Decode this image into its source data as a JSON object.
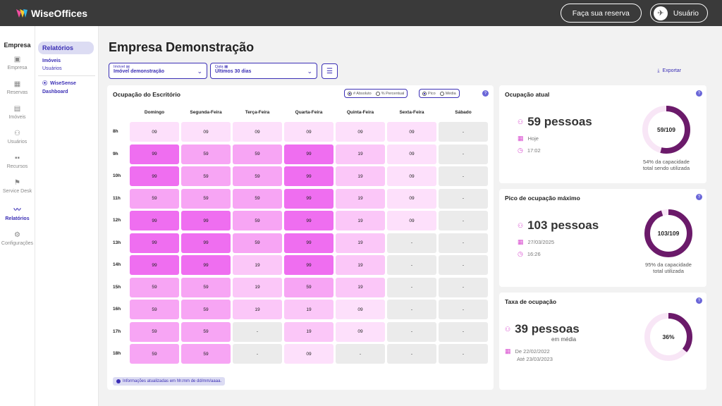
{
  "brand": {
    "name": "WiseOffices"
  },
  "topbar": {
    "reserve_label": "Faça sua reserva",
    "user_label": "Usuário"
  },
  "sidebar": {
    "title": "Empresa",
    "items": [
      {
        "label": "Empresa",
        "icon": "company-icon"
      },
      {
        "label": "Reservas",
        "icon": "calendar-icon"
      },
      {
        "label": "Imóveis",
        "icon": "building-icon"
      },
      {
        "label": "Usuários",
        "icon": "users-icon"
      },
      {
        "label": "Recursos",
        "icon": "grid-icon"
      },
      {
        "label": "Service Desk",
        "icon": "flag-icon"
      },
      {
        "label": "Relatórios",
        "icon": "chart-icon"
      },
      {
        "label": "Configurações",
        "icon": "gear-icon"
      }
    ]
  },
  "subnav": {
    "head": "Relatórios",
    "link1": "Imóveis",
    "link2": "Usuários",
    "ws": "WiseSense",
    "ws_link": "Dashboard"
  },
  "page": {
    "title": "Empresa Demonstração"
  },
  "filters": {
    "imovel_label": "Imóvel",
    "imovel_value": "Imóvel demonstração",
    "data_label": "Data",
    "data_value": "Últimos 30 dias",
    "export_label": "Exportar"
  },
  "occupancy": {
    "title": "Ocupação do Escritório",
    "toggle1": [
      "# Absoluto",
      "% Percentual"
    ],
    "toggle2": [
      "Pico",
      "Média"
    ],
    "days": [
      "Domingo",
      "Segunda-Feira",
      "Terça-Feira",
      "Quarta-Feira",
      "Quinta-Feira",
      "Sexta-Feira",
      "Sábado"
    ],
    "hours": [
      "8h",
      "9h",
      "10h",
      "11h",
      "12h",
      "13h",
      "14h",
      "15h",
      "16h",
      "17h",
      "18h"
    ],
    "values": [
      [
        "09",
        "09",
        "09",
        "09",
        "09",
        "09",
        "-"
      ],
      [
        "99",
        "59",
        "59",
        "99",
        "19",
        "09",
        "-"
      ],
      [
        "99",
        "59",
        "59",
        "99",
        "19",
        "09",
        "-"
      ],
      [
        "59",
        "59",
        "59",
        "99",
        "19",
        "09",
        "-"
      ],
      [
        "99",
        "99",
        "59",
        "99",
        "19",
        "09",
        "-"
      ],
      [
        "99",
        "99",
        "59",
        "99",
        "19",
        "-",
        "-"
      ],
      [
        "99",
        "99",
        "19",
        "99",
        "19",
        "-",
        "-"
      ],
      [
        "59",
        "59",
        "19",
        "59",
        "19",
        "-",
        "-"
      ],
      [
        "59",
        "59",
        "19",
        "19",
        "09",
        "-",
        "-"
      ],
      [
        "59",
        "59",
        "-",
        "19",
        "09",
        "-",
        "-"
      ],
      [
        "59",
        "59",
        "-",
        "09",
        "-",
        "-",
        "-"
      ]
    ],
    "colors": {
      "99": "#ef6ef0",
      "59": "#f7a5f4",
      "19": "#fbc7f8",
      "09": "#fde0fb",
      "-": "#ebebeb"
    },
    "info": "Informações atualizadas em hh:mm de dd/mm/aaaa."
  },
  "current": {
    "title": "Ocupação atual",
    "people": "59 pessoas",
    "line1": "Hoje",
    "line2": "17:02",
    "donut_label": "59/109",
    "fraction": 0.54,
    "caption1": "54% da capacidade",
    "caption2": "total sendo utilizada"
  },
  "peak": {
    "title": "Pico de ocupação máximo",
    "people": "103 pessoas",
    "line1": "27/03/2025",
    "line2": "16:26",
    "donut_label": "103/109",
    "fraction": 0.95,
    "caption1": "95% da capacidade",
    "caption2": "total utilizada"
  },
  "rate": {
    "title": "Taxa de ocupação",
    "people": "39 pessoas",
    "sub": "em média",
    "line1": "De 22/02/2022",
    "line2": "Até 23/03/2023",
    "donut_label": "36%",
    "fraction": 0.36
  },
  "colors": {
    "accent": "#3b2fb5",
    "donut": "#6b1a6a",
    "donut_track": "#f8e6f6"
  }
}
